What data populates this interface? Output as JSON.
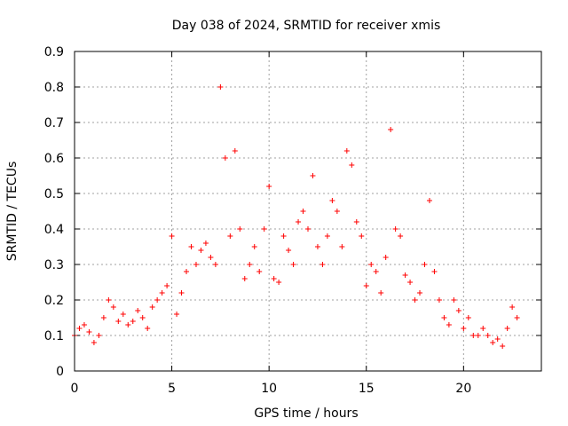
{
  "chart_data": {
    "type": "scatter",
    "title": "Day 038 of 2024, SRMTID for receiver xmis",
    "xlabel": "GPS time / hours",
    "ylabel": "SRMTID / TECUs",
    "xlim": [
      0,
      24
    ],
    "ylim": [
      0,
      0.9
    ],
    "xticks": [
      "0",
      "5",
      "10",
      "15",
      "20"
    ],
    "yticks": [
      "0",
      "0.1",
      "0.2",
      "0.3",
      "0.4",
      "0.5",
      "0.6",
      "0.7",
      "0.8",
      "0.9"
    ],
    "grid": true,
    "marker": "+",
    "color": "#ff0000",
    "series": [
      {
        "name": "SRMTID",
        "x": [
          0.0,
          0.25,
          0.5,
          0.75,
          1.0,
          1.25,
          1.5,
          1.75,
          2.0,
          2.25,
          2.5,
          2.75,
          3.0,
          3.25,
          3.5,
          3.75,
          4.0,
          4.25,
          4.5,
          4.75,
          5.0,
          5.25,
          5.5,
          5.75,
          6.0,
          6.25,
          6.5,
          6.75,
          7.0,
          7.25,
          7.5,
          7.75,
          8.0,
          8.25,
          8.5,
          8.75,
          9.0,
          9.25,
          9.5,
          9.75,
          10.0,
          10.25,
          10.5,
          10.75,
          11.0,
          11.25,
          11.5,
          11.75,
          12.0,
          12.25,
          12.5,
          12.75,
          13.0,
          13.25,
          13.5,
          13.75,
          14.0,
          14.25,
          14.5,
          14.75,
          15.0,
          15.25,
          15.5,
          15.75,
          16.0,
          16.25,
          16.5,
          16.75,
          17.0,
          17.25,
          17.5,
          17.75,
          18.0,
          18.25,
          18.5,
          18.75,
          19.0,
          19.25,
          19.5,
          19.75,
          20.0,
          20.25,
          20.5,
          20.75,
          21.0,
          21.25,
          21.5,
          21.75,
          22.0,
          22.25,
          22.5,
          22.75
        ],
        "y": [
          0.1,
          0.12,
          0.13,
          0.11,
          0.08,
          0.1,
          0.15,
          0.2,
          0.18,
          0.14,
          0.16,
          0.13,
          0.14,
          0.17,
          0.15,
          0.12,
          0.18,
          0.2,
          0.22,
          0.24,
          0.38,
          0.16,
          0.22,
          0.28,
          0.35,
          0.3,
          0.34,
          0.36,
          0.32,
          0.3,
          0.8,
          0.6,
          0.38,
          0.62,
          0.4,
          0.26,
          0.3,
          0.35,
          0.28,
          0.4,
          0.52,
          0.26,
          0.25,
          0.38,
          0.34,
          0.3,
          0.42,
          0.45,
          0.4,
          0.55,
          0.35,
          0.3,
          0.38,
          0.48,
          0.45,
          0.35,
          0.62,
          0.58,
          0.42,
          0.38,
          0.24,
          0.3,
          0.28,
          0.22,
          0.32,
          0.68,
          0.4,
          0.38,
          0.27,
          0.25,
          0.2,
          0.22,
          0.3,
          0.48,
          0.28,
          0.2,
          0.15,
          0.13,
          0.2,
          0.17,
          0.12,
          0.15,
          0.1,
          0.1,
          0.12,
          0.1,
          0.08,
          0.09,
          0.07,
          0.12,
          0.18,
          0.15
        ]
      }
    ]
  }
}
